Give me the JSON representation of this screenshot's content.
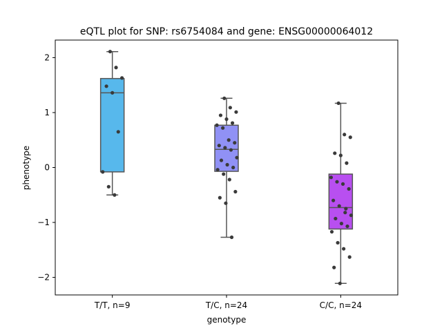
{
  "chart_data": {
    "type": "box",
    "title": "eQTL plot for SNP: rs6754084 and gene: ENSG00000064012",
    "xlabel": "genotype",
    "ylabel": "phenotype",
    "ylim": [
      -2.32,
      2.32
    ],
    "yticks": [
      -2,
      -1,
      0,
      1,
      2
    ],
    "ytick_labels": [
      "−2",
      "−1",
      "0",
      "1",
      "2"
    ],
    "grid": false,
    "legend": "none",
    "categories": [
      "T/T, n=9",
      "T/C, n=24",
      "C/C, n=24"
    ],
    "boxes": [
      {
        "category": "T/T, n=9",
        "color": "#57b8ec",
        "q1": -0.08,
        "median": 1.36,
        "q3": 1.62,
        "whisker_low": -0.5,
        "whisker_high": 2.11
      },
      {
        "category": "T/C, n=24",
        "color": "#9091f5",
        "q1": -0.07,
        "median": 0.33,
        "q3": 0.77,
        "whisker_low": -1.27,
        "whisker_high": 1.26
      },
      {
        "category": "C/C, n=24",
        "color": "#b84ff0",
        "q1": -1.12,
        "median": -0.73,
        "q3": -0.12,
        "whisker_low": -2.11,
        "whisker_high": 1.17
      }
    ],
    "points": [
      {
        "category": "T/T, n=9",
        "values": [
          2.11,
          1.82,
          1.63,
          1.48,
          1.36,
          0.65,
          -0.08,
          -0.35,
          -0.5
        ]
      },
      {
        "category": "T/C, n=24",
        "values": [
          1.26,
          1.09,
          1.01,
          0.95,
          0.88,
          0.81,
          0.77,
          0.72,
          0.5,
          0.45,
          0.4,
          0.36,
          0.32,
          0.18,
          0.13,
          0.05,
          0.0,
          -0.04,
          -0.12,
          -0.22,
          -0.44,
          -0.55,
          -0.65,
          -1.27
        ]
      },
      {
        "category": "C/C, n=24",
        "values": [
          1.17,
          0.6,
          0.55,
          0.26,
          0.22,
          0.08,
          -0.18,
          -0.26,
          -0.3,
          -0.39,
          -0.6,
          -0.7,
          -0.82,
          -0.87,
          -0.93,
          -1.02,
          -1.07,
          -1.17,
          -1.37,
          -1.48,
          -1.63,
          -1.82,
          -2.11,
          -0.75
        ]
      }
    ]
  }
}
